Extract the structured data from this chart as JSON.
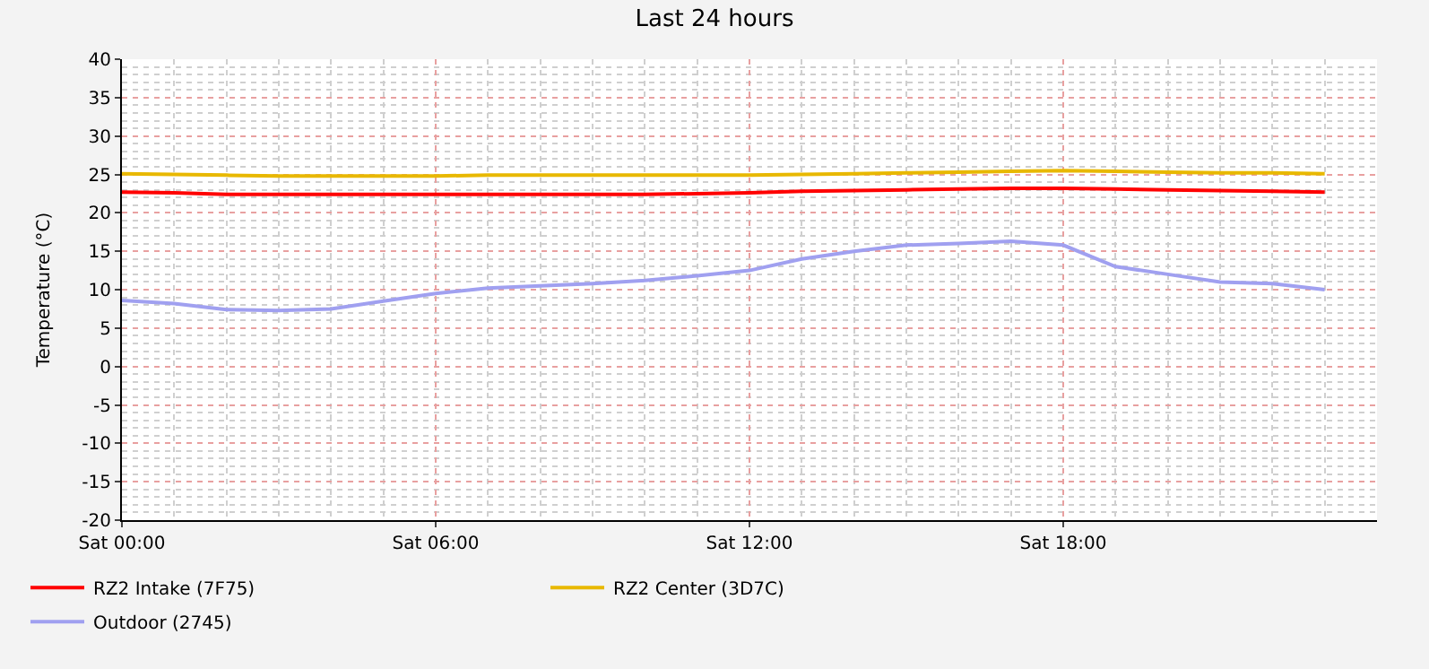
{
  "chart_data": {
    "type": "line",
    "title": "Last 24 hours",
    "ylabel": "Temperature (°C)",
    "categories": [
      "Sat 00:00",
      null,
      null,
      null,
      null,
      null,
      "Sat 06:00",
      null,
      null,
      null,
      null,
      null,
      "Sat 12:00",
      null,
      null,
      null,
      null,
      null,
      "Sat 18:00",
      null,
      null,
      null,
      null,
      null
    ],
    "series": [
      {
        "name": "RZ2 Intake (7F75)",
        "color": "#ff0000",
        "values": [
          22.7,
          22.6,
          22.4,
          22.4,
          22.4,
          22.4,
          22.4,
          22.4,
          22.4,
          22.4,
          22.4,
          22.5,
          22.6,
          22.8,
          22.9,
          23.0,
          23.1,
          23.2,
          23.2,
          23.1,
          23.0,
          22.9,
          22.8,
          22.7
        ]
      },
      {
        "name": "RZ2 Center (3D7C)",
        "color": "#e8b800",
        "values": [
          25.1,
          25.0,
          24.9,
          24.8,
          24.8,
          24.8,
          24.8,
          24.9,
          24.9,
          24.9,
          24.9,
          24.9,
          24.9,
          25.0,
          25.1,
          25.2,
          25.3,
          25.4,
          25.5,
          25.4,
          25.3,
          25.2,
          25.2,
          25.1
        ]
      },
      {
        "name": "Outdoor (2745)",
        "color": "#a0a0f0",
        "values": [
          8.6,
          8.2,
          7.4,
          7.3,
          7.5,
          8.5,
          9.5,
          10.2,
          10.5,
          10.8,
          11.2,
          11.8,
          12.5,
          14.0,
          15.0,
          15.8,
          16.0,
          16.3,
          15.8,
          13.0,
          12.0,
          11.0,
          10.8,
          10.0
        ]
      }
    ],
    "ylim": [
      -20,
      40
    ],
    "yticks": [
      -20,
      -15,
      -10,
      -5,
      0,
      5,
      10,
      15,
      20,
      25,
      30,
      35,
      40
    ],
    "grid": true,
    "legend": "bottom",
    "marker": "none",
    "line_style": "solid"
  }
}
